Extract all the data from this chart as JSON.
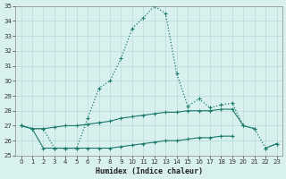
{
  "xlabel": "Humidex (Indice chaleur)",
  "x": [
    0,
    1,
    2,
    3,
    4,
    5,
    6,
    7,
    8,
    9,
    10,
    11,
    12,
    13,
    14,
    15,
    16,
    17,
    18,
    19,
    20,
    21,
    22,
    23
  ],
  "line1": [
    27.0,
    26.8,
    26.8,
    25.5,
    25.5,
    25.5,
    27.5,
    29.5,
    30.0,
    31.5,
    33.5,
    34.2,
    35.0,
    34.5,
    30.5,
    28.3,
    28.8,
    28.2,
    28.4,
    28.5,
    27.0,
    26.8,
    25.5,
    25.8
  ],
  "line2": [
    27.0,
    26.8,
    26.8,
    26.9,
    27.0,
    27.0,
    27.1,
    27.2,
    27.3,
    27.5,
    27.6,
    27.7,
    27.8,
    27.9,
    27.9,
    28.0,
    28.0,
    28.0,
    28.1,
    28.1,
    27.0,
    26.8,
    null,
    null
  ],
  "line3": [
    27.0,
    26.8,
    25.5,
    25.5,
    25.5,
    25.5,
    25.5,
    25.5,
    25.5,
    25.6,
    25.7,
    25.8,
    25.9,
    26.0,
    26.0,
    26.1,
    26.2,
    26.2,
    26.3,
    26.3,
    null,
    null,
    25.5,
    25.8
  ],
  "ylim": [
    25,
    35
  ],
  "xlim": [
    -0.5,
    23.5
  ],
  "yticks": [
    25,
    26,
    27,
    28,
    29,
    30,
    31,
    32,
    33,
    34,
    35
  ],
  "xticks": [
    0,
    1,
    2,
    3,
    4,
    5,
    6,
    7,
    8,
    9,
    10,
    11,
    12,
    13,
    14,
    15,
    16,
    17,
    18,
    19,
    20,
    21,
    22,
    23
  ],
  "line_color": "#1a7a6e",
  "bg_color": "#d8f0ee",
  "grid_color": "#b8dbd8",
  "line1_style": "dotted",
  "line2_style": "solid",
  "line3_style": "solid"
}
